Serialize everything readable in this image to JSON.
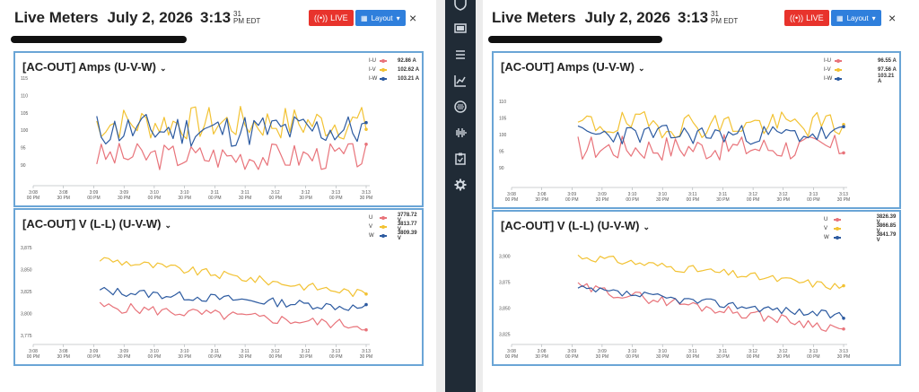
{
  "colors": {
    "u": "#e8737a",
    "v": "#f2c233",
    "w": "#2c5aa0",
    "live": "#e8332c",
    "layout": "#2f7fdc"
  },
  "sidebar": {
    "icons": [
      "shield-icon",
      "monitor-icon",
      "list-icon",
      "chart-icon",
      "gauge-icon",
      "waveform-icon",
      "clipboard-icon",
      "gear-icon"
    ]
  },
  "left": {
    "header": {
      "title": "Live Meters",
      "date": "July 2, 2026",
      "time": "3:13",
      "seconds": "31",
      "period": "PM EDT"
    },
    "live_label": "LIVE",
    "layout_label": "Layout",
    "close_label": "×",
    "amps": {
      "title": "[AC-OUT] Amps (U-V-W)",
      "legend": [
        {
          "name": "I-U",
          "value": "92.86 A"
        },
        {
          "name": "I-V",
          "value": "102.62 A"
        },
        {
          "name": "I-W",
          "value": "103.21 A"
        }
      ]
    },
    "volts": {
      "title": "[AC-OUT] V (L-L) (U-V-W)",
      "legend": [
        {
          "name": "U",
          "value": "3778.72 V"
        },
        {
          "name": "V",
          "value": "3813.77 V"
        },
        {
          "name": "W",
          "value": "3809.39 V"
        }
      ]
    }
  },
  "right": {
    "header": {
      "title": "Live Meters",
      "date": "July 2, 2026",
      "time": "3:13",
      "seconds": "31",
      "period": "PM EDT"
    },
    "live_label": "LIVE",
    "layout_label": "Layout",
    "close_label": "×",
    "amps": {
      "title": "[AC-OUT] Amps (U-V-W)",
      "legend": [
        {
          "name": "I-U",
          "value": "96.55 A"
        },
        {
          "name": "I-V",
          "value": "97.56 A"
        },
        {
          "name": "I-W",
          "value": "103.21 A"
        }
      ]
    },
    "volts": {
      "title": "[AC-OUT] V (L-L) (U-V-W)",
      "legend": [
        {
          "name": "U",
          "value": "3826.39 V"
        },
        {
          "name": "V",
          "value": "3866.85 V"
        },
        {
          "name": "W",
          "value": "3841.79 V"
        }
      ]
    }
  },
  "chart_data": [
    {
      "id": "left-amps",
      "type": "line",
      "ylim": [
        84,
        114
      ],
      "yticks": [
        "90",
        "95",
        "100",
        "105",
        "110",
        "115"
      ],
      "ytick_vals": [
        90,
        95,
        100,
        105,
        110,
        115
      ],
      "xticks": [
        [
          "3:08",
          "00 PM"
        ],
        [
          "3:08",
          "30 PM"
        ],
        [
          "3:09",
          "00 PM"
        ],
        [
          "3:09",
          "30 PM"
        ],
        [
          "3:10",
          "00 PM"
        ],
        [
          "3:10",
          "30 PM"
        ],
        [
          "3:11",
          "00 PM"
        ],
        [
          "3:11",
          "30 PM"
        ],
        [
          "3:12",
          "00 PM"
        ],
        [
          "3:12",
          "30 PM"
        ],
        [
          "3:13",
          "00 PM"
        ],
        [
          "3:13",
          "30 PM"
        ]
      ],
      "x_start": 2.1,
      "x_end": 11.0,
      "series": [
        {
          "key": "u",
          "base": 92.5,
          "amp": 4,
          "seed": 3
        },
        {
          "key": "v",
          "base": 102,
          "amp": 5,
          "seed": 7
        },
        {
          "key": "w",
          "base": 100,
          "amp": 5,
          "seed": 11
        }
      ]
    },
    {
      "id": "left-volts",
      "type": "line",
      "ylim": [
        3765,
        3885
      ],
      "yticks": [
        "3,775",
        "3,800",
        "3,825",
        "3,850",
        "3,875"
      ],
      "ytick_vals": [
        3775,
        3800,
        3825,
        3850,
        3875
      ],
      "xticks": [
        [
          "3:08",
          "00 PM"
        ],
        [
          "3:08",
          "30 PM"
        ],
        [
          "3:09",
          "00 PM"
        ],
        [
          "3:09",
          "30 PM"
        ],
        [
          "3:10",
          "00 PM"
        ],
        [
          "3:10",
          "30 PM"
        ],
        [
          "3:11",
          "00 PM"
        ],
        [
          "3:11",
          "30 PM"
        ],
        [
          "3:12",
          "00 PM"
        ],
        [
          "3:12",
          "30 PM"
        ],
        [
          "3:13",
          "00 PM"
        ],
        [
          "3:13",
          "30 PM"
        ]
      ],
      "x_start": 2.2,
      "x_end": 11.0,
      "series": [
        {
          "key": "u",
          "base": 3808,
          "amp": 6,
          "seed": 5,
          "trend": -22
        },
        {
          "key": "v",
          "base": 3862,
          "amp": 5,
          "seed": 9,
          "trend": -40
        },
        {
          "key": "w",
          "base": 3826,
          "amp": 5,
          "seed": 13,
          "trend": -20
        }
      ]
    },
    {
      "id": "right-amps",
      "type": "line",
      "ylim": [
        84,
        116
      ],
      "yticks": [
        "90",
        "95",
        "100",
        "105",
        "110"
      ],
      "ytick_vals": [
        90,
        95,
        100,
        105,
        110
      ],
      "xticks": [
        [
          "3:08",
          "00 PM"
        ],
        [
          "3:08",
          "30 PM"
        ],
        [
          "3:09",
          "00 PM"
        ],
        [
          "3:09",
          "30 PM"
        ],
        [
          "3:10",
          "00 PM"
        ],
        [
          "3:10",
          "30 PM"
        ],
        [
          "3:11",
          "00 PM"
        ],
        [
          "3:11",
          "30 PM"
        ],
        [
          "3:12",
          "00 PM"
        ],
        [
          "3:12",
          "30 PM"
        ],
        [
          "3:13",
          "00 PM"
        ],
        [
          "3:13",
          "30 PM"
        ]
      ],
      "x_start": 2.2,
      "x_end": 11.0,
      "series": [
        {
          "key": "u",
          "base": 96,
          "amp": 4,
          "seed": 17
        },
        {
          "key": "v",
          "base": 103,
          "amp": 4,
          "seed": 19
        },
        {
          "key": "w",
          "base": 100,
          "amp": 3,
          "seed": 23
        }
      ]
    },
    {
      "id": "right-volts",
      "type": "line",
      "ylim": [
        3815,
        3915
      ],
      "yticks": [
        "3,825",
        "3,850",
        "3,875",
        "3,900",
        "3,925"
      ],
      "ytick_vals": [
        3825,
        3850,
        3875,
        3900,
        3925
      ],
      "xticks": [
        [
          "3:08",
          "00 PM"
        ],
        [
          "3:08",
          "30 PM"
        ],
        [
          "3:09",
          "00 PM"
        ],
        [
          "3:09",
          "30 PM"
        ],
        [
          "3:10",
          "00 PM"
        ],
        [
          "3:10",
          "30 PM"
        ],
        [
          "3:11",
          "00 PM"
        ],
        [
          "3:11",
          "30 PM"
        ],
        [
          "3:12",
          "00 PM"
        ],
        [
          "3:12",
          "30 PM"
        ],
        [
          "3:13",
          "00 PM"
        ],
        [
          "3:13",
          "30 PM"
        ]
      ],
      "x_start": 2.2,
      "x_end": 11.0,
      "series": [
        {
          "key": "u",
          "base": 3870,
          "amp": 5,
          "seed": 29,
          "trend": -40
        },
        {
          "key": "v",
          "base": 3900,
          "amp": 4,
          "seed": 31,
          "trend": -30
        },
        {
          "key": "w",
          "base": 3868,
          "amp": 4,
          "seed": 37,
          "trend": -26
        }
      ]
    }
  ]
}
